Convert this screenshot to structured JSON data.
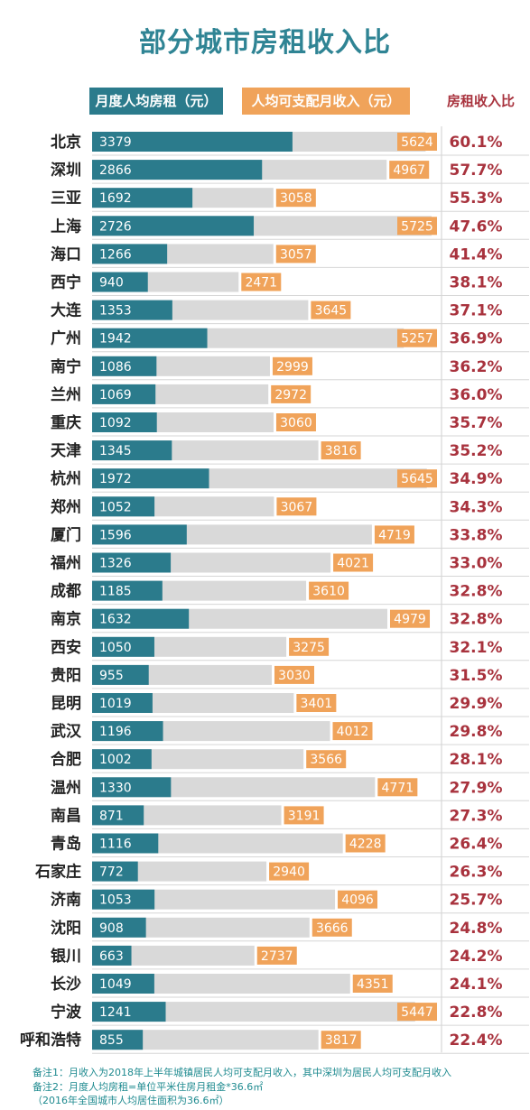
{
  "page_title": "部分城市房租收入比",
  "legend": {
    "rent": "月度人均房租（元）",
    "income": "人均可支配月收入（元）",
    "ratio": "房租收入比"
  },
  "colors": {
    "title": "#2f8494",
    "rent_bar": "#2b7b8c",
    "income_bar": "#d9d9d9",
    "income_label": "#f0a35a",
    "ratio_text": "#a8323d"
  },
  "chart_data": {
    "type": "bar",
    "orientation": "horizontal",
    "title": "部分城市房租收入比",
    "categories": [
      "北京",
      "深圳",
      "三亚",
      "上海",
      "海口",
      "西宁",
      "大连",
      "广州",
      "南宁",
      "兰州",
      "重庆",
      "天津",
      "杭州",
      "郑州",
      "厦门",
      "福州",
      "成都",
      "南京",
      "西安",
      "贵阳",
      "昆明",
      "武汉",
      "合肥",
      "温州",
      "南昌",
      "青岛",
      "石家庄",
      "济南",
      "沈阳",
      "银川",
      "长沙",
      "宁波",
      "呼和浩特"
    ],
    "series": [
      {
        "name": "月度人均房租（元）",
        "values": [
          3379,
          2866,
          1692,
          2726,
          1266,
          940,
          1353,
          1942,
          1086,
          1069,
          1092,
          1345,
          1972,
          1052,
          1596,
          1326,
          1185,
          1632,
          1050,
          955,
          1019,
          1196,
          1002,
          1330,
          871,
          1116,
          772,
          1053,
          908,
          663,
          1049,
          1241,
          855
        ]
      },
      {
        "name": "人均可支配月收入（元）",
        "values": [
          5624,
          4967,
          3058,
          5725,
          3057,
          2471,
          3645,
          5257,
          2999,
          2972,
          3060,
          3816,
          5645,
          3067,
          4719,
          4021,
          3610,
          4979,
          3275,
          3030,
          3401,
          4012,
          3566,
          4771,
          3191,
          4228,
          2940,
          4096,
          3666,
          2737,
          4351,
          5447,
          3817
        ]
      }
    ],
    "ratio_labels": [
      "60.1%",
      "57.7%",
      "55.3%",
      "47.6%",
      "41.4%",
      "38.1%",
      "37.1%",
      "36.9%",
      "36.2%",
      "36.0%",
      "35.7%",
      "35.2%",
      "34.9%",
      "34.3%",
      "33.8%",
      "33.0%",
      "32.8%",
      "32.8%",
      "32.1%",
      "31.5%",
      "29.9%",
      "29.8%",
      "28.1%",
      "27.9%",
      "27.3%",
      "26.4%",
      "26.3%",
      "25.7%",
      "24.8%",
      "24.2%",
      "24.1%",
      "22.8%",
      "22.4%"
    ],
    "xlim": [
      0,
      5725
    ],
    "grid": false
  },
  "notes": [
    "备注1：月收入为2018年上半年城镇居民人均可支配月收入，其中深圳为居民人均可支配月收入",
    "备注2：月度人均房租=单位平米住房月租金*36.6㎡",
    "（2016年全国城市人均居住面积为36.6㎡）"
  ]
}
